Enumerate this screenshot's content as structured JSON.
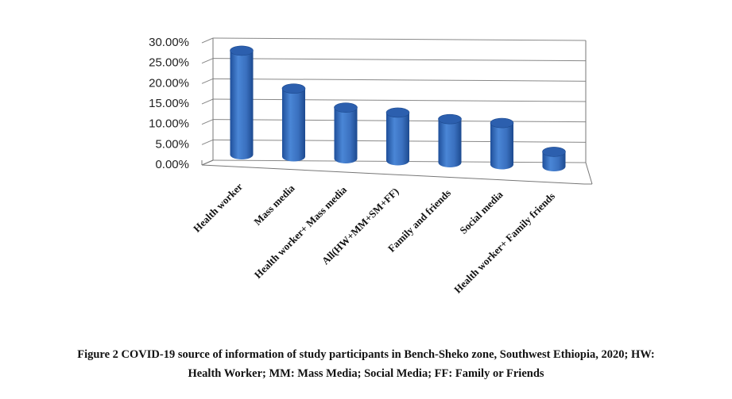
{
  "chart_data": {
    "type": "bar",
    "categories": [
      "Health worker",
      "Mass media",
      "Health worker+ Mass media",
      "All(HW+MM+SM+FF)",
      "Family and friends",
      "Social media",
      "Health worker+ Family friends"
    ],
    "values": [
      27.5,
      18.0,
      13.5,
      12.7,
      11.5,
      11.0,
      3.9
    ],
    "y_ticks": [
      "0.00%",
      "5.00%",
      "10.00%",
      "15.00%",
      "20.00%",
      "25.00%",
      "30.00%"
    ],
    "ylim": [
      0,
      30
    ],
    "grid": true,
    "style": "3d-cylinder",
    "bar_color": "#3f78c8",
    "title": "",
    "xlabel": "",
    "ylabel": ""
  },
  "caption": {
    "line1": "Figure 2 COVID-19 source of information of study participants in Bench-Sheko zone, Southwest Ethiopia, 2020; HW:",
    "line2": "Health Worker; MM: Mass Media; Social Media; FF: Family or Friends"
  }
}
